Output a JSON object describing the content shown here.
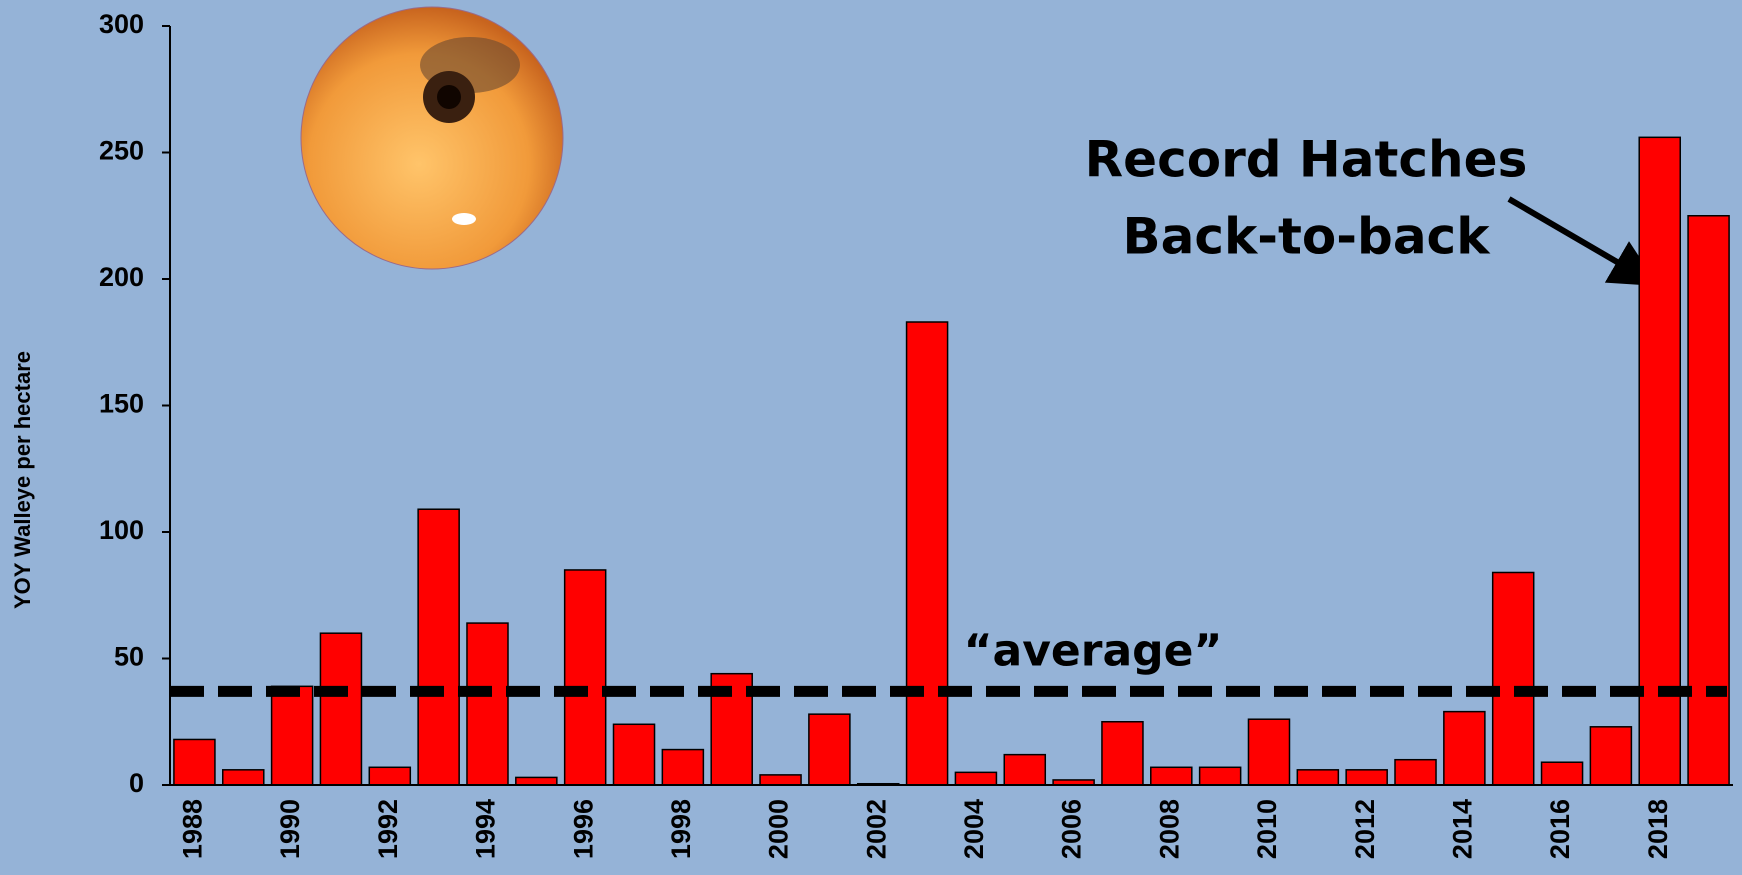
{
  "chart_data": {
    "type": "bar",
    "y_label": "YOY Walleye per hectare",
    "categories": [
      "1988",
      null,
      "1990",
      null,
      "1992",
      null,
      "1994",
      null,
      "1996",
      null,
      "1998",
      null,
      "2000",
      null,
      "2002",
      null,
      "2004",
      null,
      "2006",
      null,
      "2008",
      null,
      "2010",
      null,
      "2012",
      null,
      "2014",
      null,
      "2016",
      null,
      "2018",
      null
    ],
    "values": [
      18,
      6,
      39,
      60,
      7,
      109,
      64,
      3,
      85,
      24,
      14,
      44,
      4,
      28,
      0.5,
      183,
      5,
      12,
      2,
      25,
      7,
      7,
      26,
      6,
      6,
      10,
      29,
      84,
      9,
      23,
      256,
      225
    ],
    "color": "#ff0000",
    "ylim": [
      0,
      300
    ],
    "yticks": [
      0,
      50,
      100,
      150,
      200,
      250,
      300
    ],
    "average_line": {
      "value": 37,
      "label": "“average”"
    },
    "annotation": [
      "Record Hatches",
      "Back-to-back"
    ]
  }
}
